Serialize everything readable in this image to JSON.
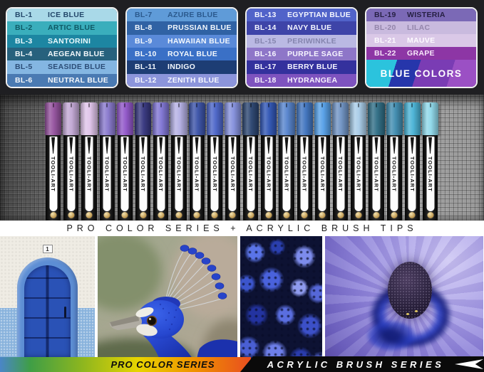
{
  "palette": {
    "columns": [
      {
        "rows": [
          {
            "code": "BL-1",
            "name": "ICE BLUE",
            "bg": "#a9d9e8",
            "fg": "#24486b"
          },
          {
            "code": "BL-2",
            "name": "ARTIC BLUE",
            "bg": "#3aaebc",
            "fg": "#0f5a66"
          },
          {
            "code": "BL-3",
            "name": "SANTORINI",
            "bg": "#1d86a2",
            "fg": "#eafafd"
          },
          {
            "code": "BL-4",
            "name": "AEGEAN BLUE",
            "bg": "#27617d",
            "fg": "#f2f8fb"
          },
          {
            "code": "BL-5",
            "name": "SEASIDE BLUE",
            "bg": "#84b6e2",
            "fg": "#2c4d77"
          },
          {
            "code": "BL-6",
            "name": "NEUTRAL BLUE",
            "bg": "#4a7ab2",
            "fg": "#f4f8fc"
          }
        ]
      },
      {
        "rows": [
          {
            "code": "BL-7",
            "name": "AZURE BLUE",
            "bg": "#5f9bd8",
            "fg": "#2b5a8e"
          },
          {
            "code": "BL-8",
            "name": "PRUSSIAN BLUE",
            "bg": "#3062a4",
            "fg": "#f2f7fc"
          },
          {
            "code": "BL-9",
            "name": "HAWAIIAN BLUE",
            "bg": "#5a8ad9",
            "fg": "#f2f7fc"
          },
          {
            "code": "BL-10",
            "name": "ROYAL BLUE",
            "bg": "#3a70c6",
            "fg": "#f2f7fc"
          },
          {
            "code": "BL-11",
            "name": "INDIGO",
            "bg": "#1d3d74",
            "fg": "#f2f7fc"
          },
          {
            "code": "BL-12",
            "name": "ZENITH BLUE",
            "bg": "#8c95db",
            "fg": "#f6f8ff"
          }
        ]
      },
      {
        "rows": [
          {
            "code": "BL-13",
            "name": "EGYPTIAN BLUE",
            "bg": "#5163c9",
            "fg": "#f4f6ff"
          },
          {
            "code": "BL-14",
            "name": "NAVY BLUE",
            "bg": "#3e44a8",
            "fg": "#f4f6ff"
          },
          {
            "code": "BL-15",
            "name": "PERIWINKLE",
            "bg": "#bab9e3",
            "fg": "#8585ae"
          },
          {
            "code": "BL-16",
            "name": "PURPLE SAGE",
            "bg": "#8e76c8",
            "fg": "#f7f5ff"
          },
          {
            "code": "BL-17",
            "name": "BERRY BLUE",
            "bg": "#34319d",
            "fg": "#f4f4ff"
          },
          {
            "code": "BL-18",
            "name": "HYDRANGEA",
            "bg": "#7e53bf",
            "fg": "#f7f3ff"
          }
        ]
      },
      {
        "rows": [
          {
            "code": "BL-19",
            "name": "WISTERIA",
            "bg": "#7b69b6",
            "fg": "#262043"
          },
          {
            "code": "BL-20",
            "name": "LILAC",
            "bg": "#c9bade",
            "fg": "#9486ab"
          },
          {
            "code": "BL-21",
            "name": "MAUVE",
            "bg": "#dac8e7",
            "fg": "#fdfaff"
          },
          {
            "code": "BL-22",
            "name": "GRAPE",
            "bg": "#8d36a5",
            "fg": "#f8e7fa"
          }
        ]
      }
    ],
    "footer": {
      "label": "BLUE COLORS",
      "colors": [
        "#2bc3dd",
        "#2636ab",
        "#7a3cb4",
        "#9b50c4"
      ]
    }
  },
  "markers": {
    "brand": "TOOLI-ART",
    "cap_colors": [
      "#94519e",
      "#c2a7d4",
      "#e0c4ea",
      "#8878cd",
      "#9055c8",
      "#35357e",
      "#7f74d4",
      "#b4b0e4",
      "#3a52a8",
      "#4a64c8",
      "#8490dd",
      "#2a4470",
      "#2f55b5",
      "#5583cd",
      "#3f74c0",
      "#55a0e8",
      "#6f93c4",
      "#a8cce8",
      "#2e6d85",
      "#3f8cb0",
      "#49b3d6",
      "#8ed8ea"
    ]
  },
  "tagline": "PRO COLOR SERIES + ACRYLIC BRUSH TIPS",
  "photos": {
    "door_plate_number": "1"
  },
  "banners": {
    "left_label": "PRO COLOR SERIES",
    "left_gradient": [
      "#4a86c8",
      "#3f9e46",
      "#8ab520",
      "#e8d400",
      "#f09000",
      "#e84e20"
    ],
    "right_label": "ACRYLIC BRUSH SERIES"
  }
}
